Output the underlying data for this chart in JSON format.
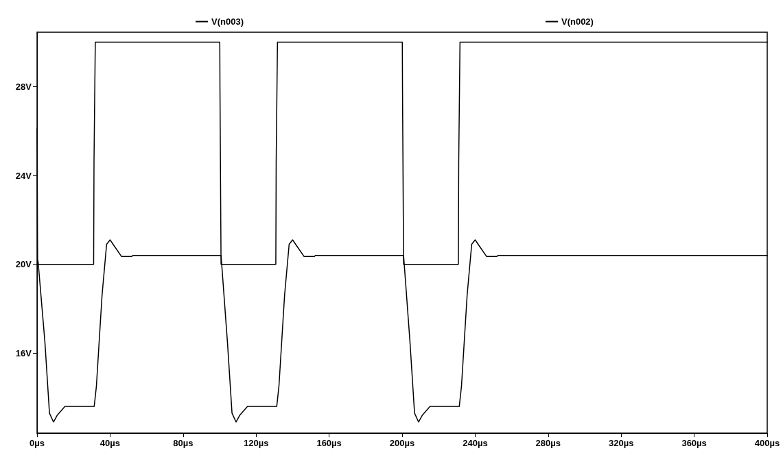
{
  "chart_data": {
    "type": "line",
    "xlim": [
      0,
      400
    ],
    "ylim": [
      12.4,
      30.45
    ],
    "xticks": [
      {
        "value": 0,
        "label": "0µs"
      },
      {
        "value": 40,
        "label": "40µs"
      },
      {
        "value": 80,
        "label": "80µs"
      },
      {
        "value": 120,
        "label": "120µs"
      },
      {
        "value": 160,
        "label": "160µs"
      },
      {
        "value": 200,
        "label": "200µs"
      },
      {
        "value": 240,
        "label": "240µs"
      },
      {
        "value": 280,
        "label": "280µs"
      },
      {
        "value": 320,
        "label": "320µs"
      },
      {
        "value": 360,
        "label": "360µs"
      },
      {
        "value": 400,
        "label": "400µs"
      }
    ],
    "yticks": [
      {
        "value": 16,
        "label": "16V"
      },
      {
        "value": 20,
        "label": "20V"
      },
      {
        "value": 24,
        "label": "24V"
      },
      {
        "value": 28,
        "label": "28V"
      }
    ],
    "grid": false,
    "legend": "top",
    "marker": "none",
    "line_style": "solid",
    "series": [
      {
        "name": "V(n003)",
        "color": "#000000",
        "x": [
          0,
          31,
          31.2,
          31.9,
          100.1,
          100.2,
          100.8,
          130.8,
          131,
          131.7,
          200.1,
          200.2,
          200.8,
          230.8,
          231,
          231.7,
          400
        ],
        "values": [
          20,
          20,
          24.6,
          30,
          30,
          28,
          20,
          20,
          24.6,
          30,
          30,
          28,
          20,
          20,
          24.6,
          30,
          30
        ]
      },
      {
        "name": "V(n002)",
        "color": "#000000",
        "x": [
          0,
          0.3,
          0.6,
          4.3,
          6.8,
          9,
          11,
          15.3,
          21,
          31.3,
          32.5,
          35.6,
          38.1,
          40,
          42.5,
          46.3,
          51.9,
          52.5,
          100.8,
          104.3,
          106.8,
          109,
          111,
          115.3,
          121,
          131.3,
          132.5,
          135.6,
          138.1,
          140,
          142.5,
          146.3,
          151.9,
          152.5,
          200.8,
          204.3,
          206.8,
          209,
          211,
          215.3,
          221,
          231.3,
          232.5,
          235.6,
          238.1,
          240,
          242.5,
          246.3,
          251.9,
          252.5,
          400
        ],
        "values": [
          26.1,
          20.2,
          20.1,
          16.5,
          13.3,
          12.9,
          13.2,
          13.6,
          13.6,
          13.6,
          14.5,
          18.6,
          20.9,
          21.1,
          20.8,
          20.35,
          20.35,
          20.4,
          20.4,
          16.5,
          13.3,
          12.9,
          13.2,
          13.6,
          13.6,
          13.6,
          14.5,
          18.6,
          20.9,
          21.1,
          20.8,
          20.35,
          20.35,
          20.4,
          20.4,
          16.5,
          13.3,
          12.9,
          13.2,
          13.6,
          13.6,
          13.6,
          14.5,
          18.6,
          20.9,
          21.1,
          20.8,
          20.35,
          20.35,
          20.4,
          20.4
        ]
      }
    ]
  }
}
